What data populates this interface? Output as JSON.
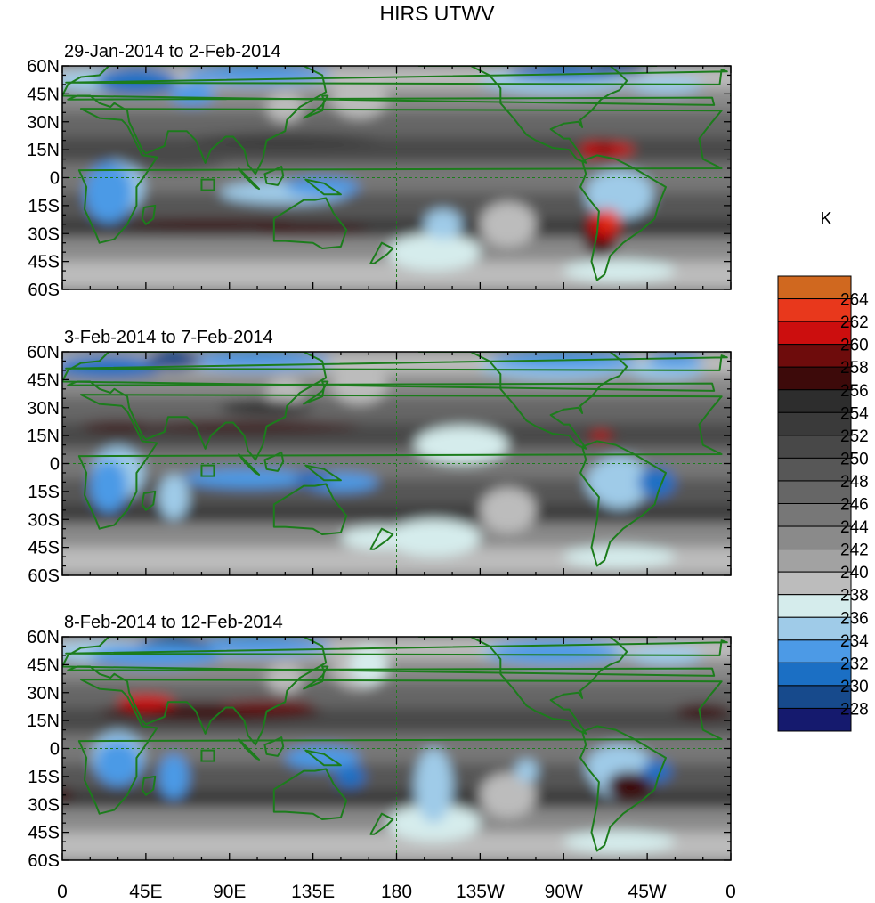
{
  "chart_data": {
    "type": "heatmap",
    "title": "HIRS UTWV",
    "units": "K",
    "panels": [
      {
        "subtitle": "29-Jan-2014 to 2-Feb-2014"
      },
      {
        "subtitle": "3-Feb-2014 to 7-Feb-2014"
      },
      {
        "subtitle": "8-Feb-2014 to 12-Feb-2014"
      }
    ],
    "ylabels": [
      "60N",
      "45N",
      "30N",
      "15N",
      "0",
      "15S",
      "30S",
      "45S",
      "60S"
    ],
    "xlabels": [
      "0",
      "45E",
      "90E",
      "135E",
      "180",
      "135W",
      "90W",
      "45W",
      "0"
    ],
    "xlim": [
      0,
      360
    ],
    "ylim": [
      -60,
      60
    ],
    "colorbar": {
      "labels": [
        "228",
        "230",
        "232",
        "234",
        "236",
        "238",
        "240",
        "242",
        "244",
        "246",
        "248",
        "250",
        "252",
        "254",
        "256",
        "258",
        "260",
        "262",
        "264"
      ],
      "colors": [
        "#151a6e",
        "#174a8c",
        "#1b6fc4",
        "#4c9ae6",
        "#9fcbe8",
        "#d5ecec",
        "#bcbcbc",
        "#a2a2a2",
        "#8a8a8a",
        "#777777",
        "#666666",
        "#575757",
        "#484848",
        "#3a3a3a",
        "#2d2d2d",
        "#3d0a0a",
        "#6e0c0c",
        "#cc0e0e",
        "#e8381c",
        "#d0681f"
      ]
    },
    "colors": {
      "coast": "#1c7c1c",
      "frame": "#000000"
    }
  }
}
